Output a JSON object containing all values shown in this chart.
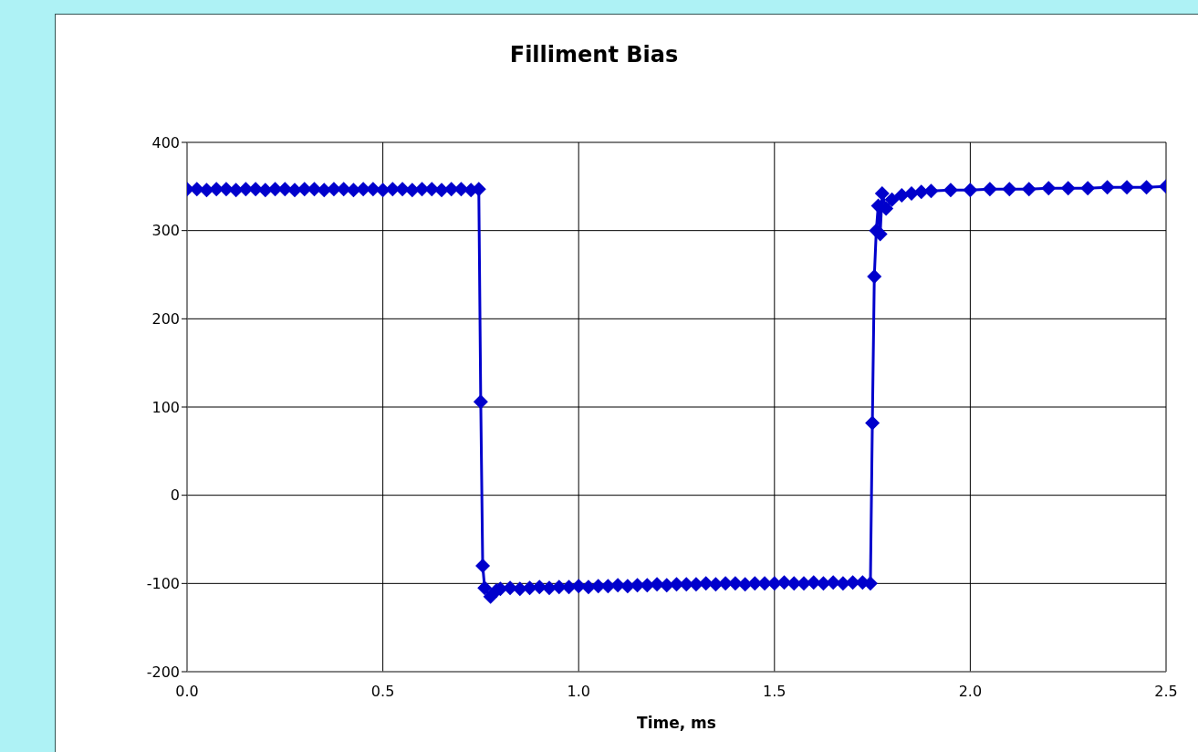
{
  "chart_data": {
    "type": "line",
    "title": "Filliment Bias",
    "xlabel": "Time, ms",
    "x": [
      0,
      0.025,
      0.05,
      0.075,
      0.1,
      0.125,
      0.15,
      0.175,
      0.2,
      0.225,
      0.25,
      0.275,
      0.3,
      0.325,
      0.35,
      0.375,
      0.4,
      0.425,
      0.45,
      0.475,
      0.5,
      0.525,
      0.55,
      0.575,
      0.6,
      0.625,
      0.65,
      0.675,
      0.7,
      0.725,
      0.745,
      0.75,
      0.755,
      0.76,
      0.775,
      0.79,
      0.8,
      0.825,
      0.85,
      0.875,
      0.9,
      0.925,
      0.95,
      0.975,
      1.0,
      1.025,
      1.05,
      1.075,
      1.1,
      1.125,
      1.15,
      1.175,
      1.2,
      1.225,
      1.25,
      1.275,
      1.3,
      1.325,
      1.35,
      1.375,
      1.4,
      1.425,
      1.45,
      1.475,
      1.5,
      1.525,
      1.55,
      1.575,
      1.6,
      1.625,
      1.65,
      1.675,
      1.7,
      1.725,
      1.745,
      1.75,
      1.755,
      1.76,
      1.765,
      1.77,
      1.775,
      1.785,
      1.8,
      1.825,
      1.85,
      1.875,
      1.9,
      1.95,
      2.0,
      2.05,
      2.1,
      2.15,
      2.2,
      2.25,
      2.3,
      2.35,
      2.4,
      2.45,
      2.5
    ],
    "series": [
      {
        "color": "#0000cc",
        "values": [
          347,
          347,
          346,
          347,
          347,
          346,
          347,
          347,
          346,
          347,
          347,
          346,
          347,
          347,
          346,
          347,
          347,
          346,
          347,
          347,
          346,
          347,
          347,
          346,
          347,
          347,
          346,
          347,
          347,
          346,
          347,
          106,
          -80,
          -105,
          -115,
          -108,
          -106,
          -105,
          -106,
          -105,
          -104,
          -105,
          -104,
          -104,
          -103,
          -104,
          -103,
          -103,
          -102,
          -103,
          -102,
          -102,
          -101,
          -102,
          -101,
          -101,
          -101,
          -100,
          -101,
          -100,
          -100,
          -101,
          -100,
          -100,
          -100,
          -99,
          -100,
          -100,
          -99,
          -100,
          -99,
          -100,
          -99,
          -99,
          -100,
          82,
          248,
          300,
          328,
          296,
          342,
          325,
          335,
          340,
          342,
          344,
          345,
          346,
          346,
          347,
          347,
          347,
          348,
          348,
          348,
          349,
          349,
          349,
          350
        ]
      }
    ],
    "xlim": [
      0,
      2.5
    ],
    "xticks": [
      {
        "value": 0,
        "label": "0.0"
      },
      {
        "value": 0.5,
        "label": "0.5"
      },
      {
        "value": 1,
        "label": "1.0"
      },
      {
        "value": 1.5,
        "label": "1.5"
      },
      {
        "value": 2,
        "label": "2.0"
      },
      {
        "value": 2.5,
        "label": "2.5"
      }
    ],
    "ylim": [
      -200,
      400
    ],
    "yticks": [
      -200,
      -100,
      0,
      100,
      200,
      300,
      400
    ],
    "grid": true,
    "legend": false,
    "marker": "diamond",
    "line_style": "solid"
  }
}
